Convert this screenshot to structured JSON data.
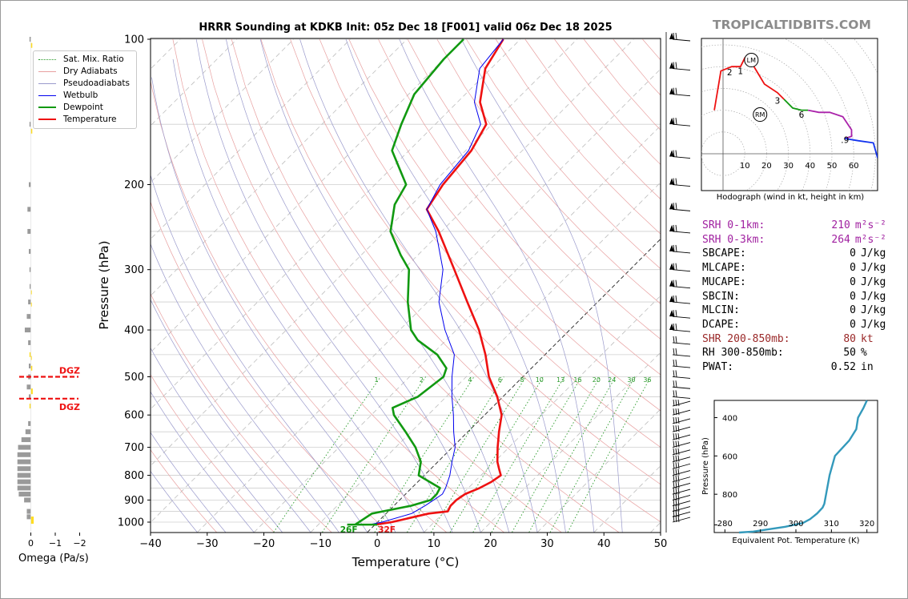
{
  "header": {
    "title": "HRRR Sounding at KDKB Init: 05z Dec 18 [F001] valid 06z Dec 18 2025",
    "brand": "TROPICALTIDBITS.COM"
  },
  "colors": {
    "temperature": "#ee1111",
    "dewpoint": "#119911",
    "wetbulb": "#0000ee",
    "hodo_0_3": "#ee1111",
    "hodo_3_6": "#119911",
    "hodo_6_9": "#aa22aa",
    "hodo_9_12": "#1133ee",
    "theta_e_line": "#3399bb",
    "omega_pos": "#9a9a9a",
    "omega_neg": "#ffdd22",
    "dgz": "#ee1111"
  },
  "chart_data": [
    {
      "type": "line",
      "subtype": "skew-t",
      "xlabel": "Temperature (°C)",
      "ylabel": "Pressure (hPa)",
      "xlim": [
        -40,
        50
      ],
      "ylim": [
        1050,
        100
      ],
      "y_scale": "log",
      "x_ticks": [
        "−40",
        "−30",
        "−20",
        "−10",
        "0",
        "10",
        "20",
        "30",
        "40",
        "50"
      ],
      "y_ticks": [
        "100",
        "200",
        "300",
        "400",
        "500",
        "600",
        "700",
        "800",
        "900",
        "1000"
      ],
      "legend": {
        "position": "top-left",
        "items": [
          {
            "name": "Sat. Mix. Ratio",
            "style": "dotted",
            "color": "#2a9a2a"
          },
          {
            "name": "Dry Adiabats",
            "style": "solid",
            "color": "#e8a0a0"
          },
          {
            "name": "Pseudoadiabats",
            "style": "solid",
            "color": "#9a9acc"
          },
          {
            "name": "Wetbulb",
            "style": "solid",
            "color": "#0000ee"
          },
          {
            "name": "Dewpoint",
            "style": "thick",
            "color": "#119911"
          },
          {
            "name": "Temperature",
            "style": "thick",
            "color": "#ee1111"
          }
        ]
      },
      "mixing_ratio_labels": [
        "1",
        "2",
        "4",
        "6",
        "8",
        "10",
        "13",
        "16",
        "20",
        "24",
        "30",
        "36"
      ],
      "surface_labels": {
        "dewpoint": "26F",
        "temperature": "32F"
      },
      "series": [
        {
          "name": "Temperature",
          "points": [
            [
              1012,
              0.1
            ],
            [
              1000,
              2.5
            ],
            [
              960,
              7.5
            ],
            [
              950,
              10.5
            ],
            [
              925,
              10.0
            ],
            [
              900,
              10.0
            ],
            [
              875,
              10.5
            ],
            [
              850,
              12.0
            ],
            [
              825,
              13.0
            ],
            [
              800,
              13.5
            ],
            [
              775,
              12.0
            ],
            [
              750,
              10.5
            ],
            [
              700,
              8.0
            ],
            [
              650,
              5.5
            ],
            [
              600,
              3.0
            ],
            [
              550,
              -1.0
            ],
            [
              500,
              -6.0
            ],
            [
              450,
              -10.5
            ],
            [
              400,
              -16.0
            ],
            [
              350,
              -23.0
            ],
            [
              300,
              -31.0
            ],
            [
              250,
              -40.5
            ],
            [
              225,
              -46.5
            ],
            [
              200,
              -48.0
            ],
            [
              170,
              -49.0
            ],
            [
              150,
              -51.0
            ],
            [
              135,
              -56.0
            ],
            [
              115,
              -61.0
            ],
            [
              100,
              -63.0
            ]
          ]
        },
        {
          "name": "Wetbulb",
          "points": [
            [
              1012,
              -1.0
            ],
            [
              1000,
              0.8
            ],
            [
              960,
              4.5
            ],
            [
              925,
              5.5
            ],
            [
              900,
              6.0
            ],
            [
              875,
              6.5
            ],
            [
              850,
              6.0
            ],
            [
              800,
              4.5
            ],
            [
              750,
              2.5
            ],
            [
              700,
              0.5
            ],
            [
              650,
              -2.5
            ],
            [
              600,
              -5.5
            ],
            [
              550,
              -9.0
            ],
            [
              500,
              -12.5
            ],
            [
              450,
              -16.0
            ],
            [
              400,
              -22.0
            ],
            [
              350,
              -28.0
            ],
            [
              300,
              -33.0
            ],
            [
              250,
              -41.0
            ],
            [
              225,
              -46.5
            ],
            [
              200,
              -48.5
            ],
            [
              170,
              -49.5
            ],
            [
              150,
              -52.0
            ],
            [
              135,
              -57.0
            ],
            [
              115,
              -62.0
            ],
            [
              100,
              -63.0
            ]
          ]
        },
        {
          "name": "Dewpoint",
          "points": [
            [
              1012,
              -3.5
            ],
            [
              960,
              -2.5
            ],
            [
              950,
              -1.0
            ],
            [
              925,
              3.0
            ],
            [
              900,
              5.5
            ],
            [
              875,
              5.5
            ],
            [
              850,
              5.0
            ],
            [
              800,
              -1.0
            ],
            [
              750,
              -3.0
            ],
            [
              700,
              -6.5
            ],
            [
              650,
              -11.0
            ],
            [
              600,
              -16.0
            ],
            [
              580,
              -17.5
            ],
            [
              550,
              -15.0
            ],
            [
              500,
              -14.0
            ],
            [
              480,
              -15.0
            ],
            [
              450,
              -19.0
            ],
            [
              420,
              -25.0
            ],
            [
              400,
              -28.0
            ],
            [
              350,
              -33.5
            ],
            [
              300,
              -39.0
            ],
            [
              280,
              -43.0
            ],
            [
              250,
              -49.0
            ],
            [
              220,
              -53.0
            ],
            [
              200,
              -54.5
            ],
            [
              170,
              -63.0
            ],
            [
              150,
              -66.0
            ],
            [
              130,
              -69.0
            ],
            [
              110,
              -70.0
            ],
            [
              100,
              -70.0
            ]
          ]
        }
      ],
      "wind_barbs_pressure": [
        100,
        115,
        130,
        150,
        175,
        200,
        225,
        250,
        275,
        300,
        325,
        350,
        375,
        400,
        425,
        450,
        475,
        500,
        525,
        550,
        575,
        600,
        625,
        650,
        675,
        700,
        725,
        750,
        775,
        800,
        825,
        850,
        875,
        900,
        925,
        950,
        975,
        1000
      ]
    },
    {
      "type": "line",
      "subtype": "hodograph",
      "caption": "Hodograph (wind in kt, height in km)",
      "ring_labels": [
        "10",
        "20",
        "30",
        "40",
        "50",
        "60"
      ],
      "height_labels": [
        "1",
        "2",
        "3",
        "6",
        ".9"
      ],
      "markers": [
        "LM",
        "RM"
      ],
      "segments": [
        {
          "name": "0-3 km",
          "points": [
            [
              -4,
              20
            ],
            [
              -2,
              32
            ],
            [
              -1,
              38
            ],
            [
              4,
              40
            ],
            [
              8,
              40
            ],
            [
              10,
              44
            ],
            [
              14,
              44
            ],
            [
              13,
              42
            ],
            [
              19,
              32
            ],
            [
              25,
              28
            ],
            [
              28,
              25
            ]
          ]
        },
        {
          "name": "3-6 km",
          "points": [
            [
              28,
              25
            ],
            [
              32,
              21
            ],
            [
              36,
              20
            ],
            [
              39,
              20
            ]
          ]
        },
        {
          "name": "6-9 km",
          "points": [
            [
              39,
              20
            ],
            [
              44,
              19
            ],
            [
              49,
              19
            ],
            [
              55,
              17
            ],
            [
              59,
              11
            ],
            [
              59,
              8
            ],
            [
              56,
              7
            ]
          ]
        },
        {
          "name": "9-12 km",
          "points": [
            [
              56,
              7
            ],
            [
              62,
              6
            ],
            [
              69,
              5
            ],
            [
              71,
              -2
            ]
          ]
        }
      ]
    },
    {
      "type": "bar",
      "subtype": "omega-profile",
      "xlabel": "Omega (Pa/s)",
      "x_ticks": [
        "0",
        "−1",
        "−2"
      ],
      "levels": [
        {
          "p": 100,
          "v": 0.1
        },
        {
          "p": 150,
          "v": 0.1
        },
        {
          "p": 200,
          "v": 0.15
        },
        {
          "p": 225,
          "v": 0.25
        },
        {
          "p": 250,
          "v": 0.25
        },
        {
          "p": 275,
          "v": 0.15
        },
        {
          "p": 300,
          "v": 0.1
        },
        {
          "p": 325,
          "v": 0.05
        },
        {
          "p": 350,
          "v": 0.2
        },
        {
          "p": 375,
          "v": 0.3
        },
        {
          "p": 400,
          "v": 0.45
        },
        {
          "p": 425,
          "v": 0.2
        },
        {
          "p": 450,
          "v": 0.1
        },
        {
          "p": 475,
          "v": 0.15
        },
        {
          "p": 500,
          "v": 0.2
        },
        {
          "p": 525,
          "v": 0.3
        },
        {
          "p": 550,
          "v": 0.15
        },
        {
          "p": 575,
          "v": 0.1
        },
        {
          "p": 625,
          "v": 0.2
        },
        {
          "p": 650,
          "v": 0.4
        },
        {
          "p": 675,
          "v": 0.7
        },
        {
          "p": 700,
          "v": 0.95
        },
        {
          "p": 725,
          "v": 1.0
        },
        {
          "p": 750,
          "v": 1.0
        },
        {
          "p": 775,
          "v": 1.0
        },
        {
          "p": 800,
          "v": 1.0
        },
        {
          "p": 825,
          "v": 1.0
        },
        {
          "p": 850,
          "v": 1.0
        },
        {
          "p": 875,
          "v": 0.9
        },
        {
          "p": 900,
          "v": 0.5
        },
        {
          "p": 950,
          "v": 0.3
        },
        {
          "p": 975,
          "v": 0.3
        }
      ],
      "dgz": {
        "label": "DGZ",
        "top_hPa": 555,
        "bottom_hPa": 500
      }
    },
    {
      "type": "line",
      "subtype": "theta-e profile",
      "xlabel": "Equivalent Pot. Temperature (K)",
      "ylabel": "Pressure (hPa)",
      "x_ticks": [
        "280",
        "290",
        "300",
        "310",
        "320"
      ],
      "y_ticks": [
        "400",
        "600",
        "800"
      ],
      "xlim": [
        277,
        323
      ],
      "ylim": [
        1000,
        310
      ],
      "points": [
        [
          1000,
          284
        ],
        [
          995,
          288
        ],
        [
          970,
          297
        ],
        [
          950,
          302
        ],
        [
          930,
          304
        ],
        [
          900,
          306
        ],
        [
          870,
          307.5
        ],
        [
          850,
          308
        ],
        [
          800,
          308.5
        ],
        [
          700,
          309.5
        ],
        [
          600,
          311
        ],
        [
          520,
          315
        ],
        [
          460,
          317
        ],
        [
          400,
          317.5
        ],
        [
          350,
          319
        ],
        [
          310,
          320
        ]
      ]
    }
  ],
  "stats": [
    {
      "label": "SRH 0-1km:",
      "value": "210",
      "unit": "m²s⁻²",
      "color": "srh"
    },
    {
      "label": "SRH 0-3km:",
      "value": "264",
      "unit": "m²s⁻²",
      "color": "srh"
    },
    {
      "label": "SBCAPE:",
      "value": "0",
      "unit": "J/kg",
      "color": ""
    },
    {
      "label": "MLCAPE:",
      "value": "0",
      "unit": "J/kg",
      "color": ""
    },
    {
      "label": "MUCAPE:",
      "value": "0",
      "unit": "J/kg",
      "color": ""
    },
    {
      "label": "SBCIN:",
      "value": "0",
      "unit": "J/kg",
      "color": ""
    },
    {
      "label": "MLCIN:",
      "value": "0",
      "unit": "J/kg",
      "color": ""
    },
    {
      "label": "DCAPE:",
      "value": "0",
      "unit": "J/kg",
      "color": ""
    },
    {
      "label": "SHR 200-850mb:",
      "value": "80",
      "unit": "kt",
      "color": "shr"
    },
    {
      "label": "RH 300-850mb:",
      "value": "50",
      "unit": "%",
      "color": ""
    },
    {
      "label": "PWAT:",
      "value": "0.52",
      "unit": "in",
      "color": ""
    }
  ]
}
